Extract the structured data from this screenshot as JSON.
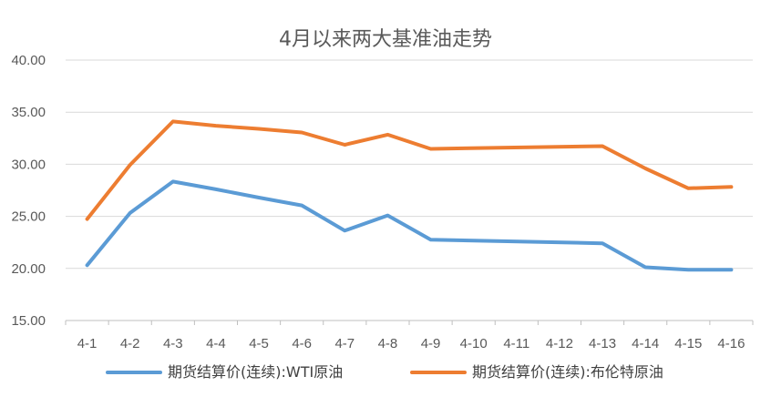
{
  "chart_data": {
    "type": "line",
    "title": "4月以来两大基准油走势",
    "xlabel": "",
    "ylabel": "",
    "categories": [
      "4-1",
      "4-2",
      "4-3",
      "4-4",
      "4-5",
      "4-6",
      "4-7",
      "4-8",
      "4-9",
      "4-10",
      "4-11",
      "4-12",
      "4-13",
      "4-14",
      "4-15",
      "4-16"
    ],
    "ylim": [
      15,
      40
    ],
    "yticks": [
      "15.00",
      "20.00",
      "25.00",
      "30.00",
      "35.00",
      "40.00"
    ],
    "grid": true,
    "legend_position": "bottom",
    "series": [
      {
        "name": "期货结算价(连续):WTI原油",
        "color": "#5B9BD5",
        "values": [
          20.31,
          25.32,
          28.34,
          27.6,
          26.8,
          26.05,
          23.63,
          25.09,
          22.76,
          null,
          null,
          null,
          22.41,
          20.11,
          19.87,
          19.87
        ]
      },
      {
        "name": "期货结算价(连续):布伦特原油",
        "color": "#ED7D31",
        "values": [
          24.74,
          29.94,
          34.11,
          33.7,
          33.4,
          33.05,
          31.87,
          32.84,
          31.48,
          null,
          null,
          null,
          31.74,
          29.6,
          27.69,
          27.82
        ]
      }
    ]
  }
}
